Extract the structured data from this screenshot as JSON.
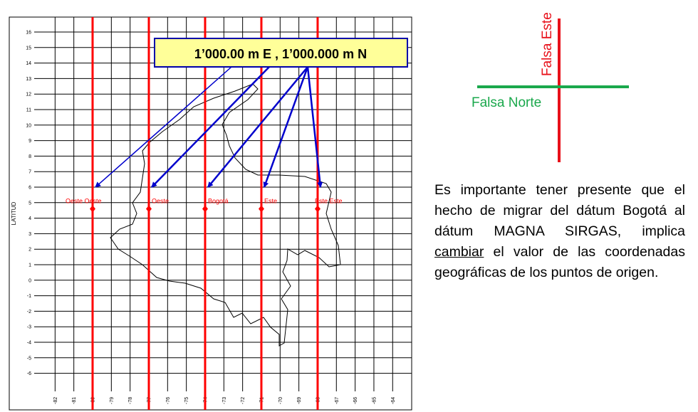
{
  "map": {
    "y_axis_label": "LATITUD",
    "lat_ticks": [
      "16",
      "15",
      "14",
      "13",
      "12",
      "11",
      "10",
      "9",
      "8",
      "7",
      "6",
      "5",
      "4",
      "3",
      "2",
      "1",
      "0",
      "-1",
      "-2",
      "-3",
      "-4",
      "-5",
      "-6"
    ],
    "lon_ticks": [
      "-82",
      "-81",
      "-80",
      "-79",
      "-78",
      "-77",
      "-76",
      "-75",
      "-74",
      "-73",
      "-72",
      "-71",
      "-70",
      "-69",
      "-68",
      "-67",
      "-66",
      "-65",
      "-64"
    ],
    "origin_lon": [
      -80,
      -77,
      -74,
      -71,
      -68
    ],
    "origin_lat": 4.6,
    "origin_labels": [
      "Oeste Oeste",
      "Oeste",
      "Bogotá",
      "Este",
      "Este Este"
    ],
    "callout": {
      "text": "1’000.00 m E , 1’000.000 m N"
    },
    "colors": {
      "meridian": "#ff0000",
      "arrow": "#0000cc",
      "callout_fill": "#ffff99",
      "callout_border": "#0000aa"
    }
  },
  "cross": {
    "vertical_label": "Falsa Este",
    "horizontal_label": "Falsa Norte",
    "colors": {
      "vertical": "#e8101a",
      "horizontal": "#1aa84c"
    }
  },
  "note": {
    "part1": "Es importante tener presente que el hecho de migrar del dátum Bogotá al dátum MAGNA SIRGAS, implica ",
    "underlined": "cambiar",
    "part2": " el valor de las coordenadas geográficas de los puntos de origen."
  }
}
